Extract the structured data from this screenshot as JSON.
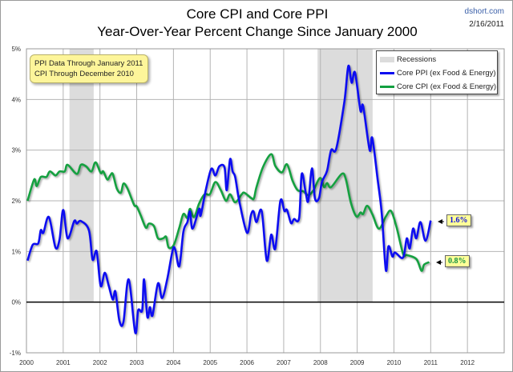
{
  "chart_data": {
    "type": "line",
    "title": "Core CPI and Core PPI",
    "subtitle": "Year-Over-Year Percent Change Since January 2000",
    "source": "dshort.com",
    "date": "2/16/2011",
    "xlim": [
      2000,
      2013
    ],
    "ylim": [
      -1,
      5
    ],
    "x_ticks": [
      "2000",
      "2001",
      "2002",
      "2003",
      "2004",
      "2005",
      "2006",
      "2007",
      "2008",
      "2009",
      "2010",
      "2011",
      "2012"
    ],
    "y_ticks": [
      "-1%",
      "0%",
      "1%",
      "2%",
      "3%",
      "4%",
      "5%"
    ],
    "grid": true,
    "legend_placement": "top-right",
    "legend": [
      "Recessions",
      "Core PPI (ex Food & Energy)",
      "Core CPI (ex Food & Energy)"
    ],
    "annotation": [
      "PPI Data Through January 2011",
      "CPI Through December 2010"
    ],
    "end_labels": {
      "ppi": "1.6%",
      "cpi": "0.8%"
    },
    "recessions": [
      [
        2001.17,
        2001.83
      ],
      [
        2007.92,
        2009.42
      ]
    ],
    "colors": {
      "ppi": "#0a0af0",
      "cpi": "#12a040",
      "recession": "#dcdcdc",
      "zero_line": "#000000"
    },
    "series": [
      {
        "name": "Core PPI (ex Food & Energy)",
        "key": "ppi",
        "points": [
          [
            2000.03,
            0.82
          ],
          [
            2000.17,
            1.13
          ],
          [
            2000.32,
            1.16
          ],
          [
            2000.39,
            1.42
          ],
          [
            2000.46,
            1.37
          ],
          [
            2000.61,
            1.68
          ],
          [
            2000.79,
            1.08
          ],
          [
            2000.9,
            1.24
          ],
          [
            2001.0,
            1.82
          ],
          [
            2001.12,
            1.26
          ],
          [
            2001.3,
            1.6
          ],
          [
            2001.37,
            1.55
          ],
          [
            2001.48,
            1.6
          ],
          [
            2001.7,
            1.42
          ],
          [
            2001.8,
            0.84
          ],
          [
            2001.91,
            1.0
          ],
          [
            2002.02,
            0.32
          ],
          [
            2002.13,
            0.58
          ],
          [
            2002.24,
            0.32
          ],
          [
            2002.35,
            0.05
          ],
          [
            2002.42,
            0.21
          ],
          [
            2002.53,
            -0.37
          ],
          [
            2002.64,
            -0.39
          ],
          [
            2002.78,
            0.45
          ],
          [
            2002.96,
            -0.6
          ],
          [
            2003.04,
            -0.16
          ],
          [
            2003.15,
            -0.16
          ],
          [
            2003.2,
            0.45
          ],
          [
            2003.29,
            -0.29
          ],
          [
            2003.36,
            -0.1
          ],
          [
            2003.43,
            -0.26
          ],
          [
            2003.58,
            0.37
          ],
          [
            2003.69,
            0.08
          ],
          [
            2003.83,
            0.45
          ],
          [
            2003.98,
            1.03
          ],
          [
            2004.05,
            1.03
          ],
          [
            2004.16,
            0.71
          ],
          [
            2004.27,
            1.39
          ],
          [
            2004.38,
            1.58
          ],
          [
            2004.45,
            1.79
          ],
          [
            2004.52,
            1.45
          ],
          [
            2004.7,
            1.84
          ],
          [
            2004.74,
            1.71
          ],
          [
            2004.88,
            2.21
          ],
          [
            2005.03,
            2.63
          ],
          [
            2005.14,
            2.5
          ],
          [
            2005.25,
            2.68
          ],
          [
            2005.39,
            2.66
          ],
          [
            2005.45,
            2.21
          ],
          [
            2005.54,
            2.82
          ],
          [
            2005.61,
            2.58
          ],
          [
            2005.68,
            2.47
          ],
          [
            2005.79,
            2.0
          ],
          [
            2006.0,
            1.37
          ],
          [
            2006.11,
            1.72
          ],
          [
            2006.18,
            1.79
          ],
          [
            2006.26,
            1.58
          ],
          [
            2006.4,
            1.8
          ],
          [
            2006.54,
            0.82
          ],
          [
            2006.66,
            1.33
          ],
          [
            2006.77,
            1.06
          ],
          [
            2006.91,
            2.0
          ],
          [
            2007.02,
            1.8
          ],
          [
            2007.09,
            1.82
          ],
          [
            2007.2,
            1.56
          ],
          [
            2007.28,
            1.64
          ],
          [
            2007.42,
            1.66
          ],
          [
            2007.49,
            2.53
          ],
          [
            2007.6,
            2.16
          ],
          [
            2007.67,
            2.0
          ],
          [
            2007.77,
            2.64
          ],
          [
            2007.85,
            2.05
          ],
          [
            2007.96,
            2.05
          ],
          [
            2008.04,
            2.37
          ],
          [
            2008.18,
            2.59
          ],
          [
            2008.29,
            3.0
          ],
          [
            2008.43,
            3.03
          ],
          [
            2008.65,
            3.95
          ],
          [
            2008.76,
            4.66
          ],
          [
            2008.85,
            4.33
          ],
          [
            2008.94,
            4.53
          ],
          [
            2009.09,
            3.78
          ],
          [
            2009.16,
            3.87
          ],
          [
            2009.34,
            3.0
          ],
          [
            2009.41,
            3.24
          ],
          [
            2009.56,
            2.4
          ],
          [
            2009.67,
            1.74
          ],
          [
            2009.78,
            0.63
          ],
          [
            2009.85,
            1.1
          ],
          [
            2009.96,
            0.9
          ],
          [
            2010.03,
            0.98
          ],
          [
            2010.21,
            0.87
          ],
          [
            2010.28,
            0.95
          ],
          [
            2010.35,
            1.26
          ],
          [
            2010.43,
            1.06
          ],
          [
            2010.52,
            1.45
          ],
          [
            2010.61,
            1.26
          ],
          [
            2010.72,
            1.58
          ],
          [
            2010.86,
            1.21
          ],
          [
            2011.0,
            1.61
          ]
        ]
      },
      {
        "name": "Core CPI (ex Food & Energy)",
        "key": "cpi",
        "points": [
          [
            2000.03,
            2.0
          ],
          [
            2000.21,
            2.42
          ],
          [
            2000.28,
            2.29
          ],
          [
            2000.39,
            2.47
          ],
          [
            2000.54,
            2.47
          ],
          [
            2000.64,
            2.58
          ],
          [
            2000.79,
            2.5
          ],
          [
            2000.9,
            2.58
          ],
          [
            2001.04,
            2.58
          ],
          [
            2001.12,
            2.71
          ],
          [
            2001.37,
            2.53
          ],
          [
            2001.48,
            2.71
          ],
          [
            2001.62,
            2.68
          ],
          [
            2001.77,
            2.58
          ],
          [
            2001.88,
            2.76
          ],
          [
            2002.02,
            2.55
          ],
          [
            2002.09,
            2.58
          ],
          [
            2002.2,
            2.42
          ],
          [
            2002.28,
            2.5
          ],
          [
            2002.35,
            2.53
          ],
          [
            2002.46,
            2.24
          ],
          [
            2002.57,
            2.16
          ],
          [
            2002.64,
            2.34
          ],
          [
            2002.75,
            2.24
          ],
          [
            2002.93,
            1.92
          ],
          [
            2003.0,
            1.89
          ],
          [
            2003.11,
            1.71
          ],
          [
            2003.25,
            1.47
          ],
          [
            2003.33,
            1.55
          ],
          [
            2003.47,
            1.5
          ],
          [
            2003.58,
            1.26
          ],
          [
            2003.72,
            1.26
          ],
          [
            2003.8,
            1.29
          ],
          [
            2003.87,
            1.08
          ],
          [
            2004.01,
            1.13
          ],
          [
            2004.16,
            1.47
          ],
          [
            2004.27,
            1.74
          ],
          [
            2004.38,
            1.66
          ],
          [
            2004.45,
            1.84
          ],
          [
            2004.56,
            1.68
          ],
          [
            2004.7,
            1.95
          ],
          [
            2004.85,
            2.13
          ],
          [
            2004.99,
            2.13
          ],
          [
            2005.14,
            2.37
          ],
          [
            2005.29,
            2.21
          ],
          [
            2005.43,
            2.0
          ],
          [
            2005.54,
            2.13
          ],
          [
            2005.68,
            1.97
          ],
          [
            2005.86,
            2.13
          ],
          [
            2005.93,
            2.16
          ],
          [
            2006.12,
            2.05
          ],
          [
            2006.19,
            2.05
          ],
          [
            2006.26,
            2.27
          ],
          [
            2006.44,
            2.67
          ],
          [
            2006.66,
            2.92
          ],
          [
            2006.77,
            2.69
          ],
          [
            2006.95,
            2.56
          ],
          [
            2007.09,
            2.72
          ],
          [
            2007.24,
            2.4
          ],
          [
            2007.38,
            2.21
          ],
          [
            2007.53,
            2.19
          ],
          [
            2007.67,
            2.11
          ],
          [
            2007.81,
            2.21
          ],
          [
            2007.99,
            2.45
          ],
          [
            2008.1,
            2.27
          ],
          [
            2008.18,
            2.35
          ],
          [
            2008.29,
            2.27
          ],
          [
            2008.58,
            2.53
          ],
          [
            2008.69,
            2.43
          ],
          [
            2008.83,
            1.96
          ],
          [
            2008.98,
            1.69
          ],
          [
            2009.09,
            1.77
          ],
          [
            2009.16,
            1.74
          ],
          [
            2009.27,
            1.9
          ],
          [
            2009.41,
            1.74
          ],
          [
            2009.59,
            1.45
          ],
          [
            2009.78,
            1.69
          ],
          [
            2009.92,
            1.8
          ],
          [
            2010.07,
            1.48
          ],
          [
            2010.25,
            0.95
          ],
          [
            2010.35,
            0.93
          ],
          [
            2010.61,
            0.85
          ],
          [
            2010.75,
            0.62
          ],
          [
            2010.82,
            0.74
          ],
          [
            2010.96,
            0.79
          ]
        ]
      }
    ]
  }
}
